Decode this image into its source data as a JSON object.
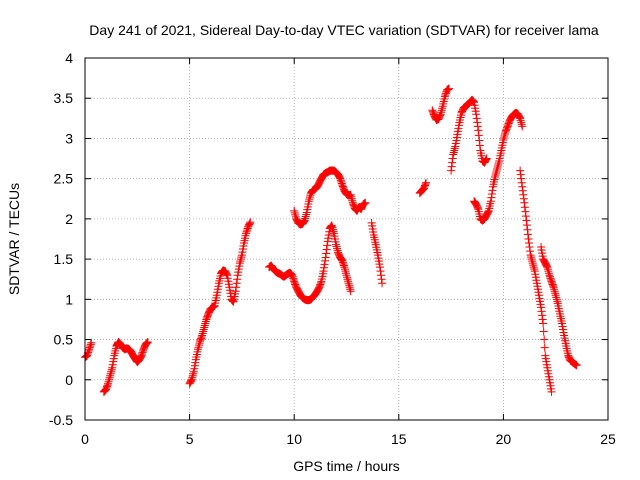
{
  "chart_data": {
    "type": "scatter",
    "title": "Day 241 of 2021, Sidereal Day-to-day VTEC variation (SDTVAR) for receiver lama",
    "xlabel": "GPS time / hours",
    "ylabel": "SDTVAR / TECUs",
    "xlim": [
      0,
      25
    ],
    "ylim": [
      -0.5,
      4
    ],
    "xticks": [
      0,
      5,
      10,
      15,
      20,
      25
    ],
    "yticks": [
      -0.5,
      0,
      0.5,
      1,
      1.5,
      2,
      2.5,
      3,
      3.5,
      4
    ],
    "xtick_labels": [
      "0",
      "5",
      "10",
      "15",
      "20",
      "25"
    ],
    "ytick_labels": [
      "-0.5",
      "0",
      "0.5",
      "1",
      "1.5",
      "2",
      "2.5",
      "3",
      "3.5",
      "4"
    ],
    "grid": true,
    "marker": "plus",
    "series": [
      {
        "name": "SDTVAR",
        "color": "#ff0000",
        "segments": [
          [
            [
              0.0,
              0.28
            ],
            [
              0.1,
              0.3
            ],
            [
              0.2,
              0.38
            ],
            [
              0.3,
              0.46
            ]
          ],
          [
            [
              0.9,
              -0.15
            ],
            [
              1.0,
              -0.12
            ],
            [
              1.1,
              -0.05
            ],
            [
              1.2,
              0.05
            ],
            [
              1.3,
              0.15
            ],
            [
              1.4,
              0.3
            ],
            [
              1.5,
              0.42
            ],
            [
              1.6,
              0.47
            ],
            [
              1.7,
              0.44
            ],
            [
              1.8,
              0.4
            ],
            [
              1.9,
              0.38
            ],
            [
              2.0,
              0.39
            ],
            [
              2.1,
              0.38
            ],
            [
              2.2,
              0.35
            ],
            [
              2.3,
              0.3
            ],
            [
              2.4,
              0.26
            ],
            [
              2.5,
              0.22
            ],
            [
              2.6,
              0.25
            ],
            [
              2.7,
              0.3
            ],
            [
              2.8,
              0.38
            ],
            [
              2.9,
              0.44
            ],
            [
              3.0,
              0.47
            ]
          ],
          [
            [
              5.0,
              -0.05
            ],
            [
              5.1,
              0.0
            ],
            [
              5.2,
              0.1
            ],
            [
              5.3,
              0.25
            ],
            [
              5.4,
              0.38
            ],
            [
              5.5,
              0.48
            ],
            [
              5.6,
              0.55
            ],
            [
              5.7,
              0.65
            ],
            [
              5.8,
              0.75
            ],
            [
              5.9,
              0.82
            ],
            [
              6.0,
              0.88
            ],
            [
              6.1,
              0.9
            ],
            [
              6.2,
              0.92
            ],
            [
              6.3,
              1.05
            ],
            [
              6.4,
              1.2
            ],
            [
              6.5,
              1.32
            ],
            [
              6.6,
              1.36
            ],
            [
              6.7,
              1.35
            ],
            [
              6.8,
              1.3
            ],
            [
              6.9,
              1.15
            ],
            [
              7.0,
              1.0
            ],
            [
              7.1,
              0.97
            ],
            [
              7.2,
              1.1
            ],
            [
              7.3,
              1.3
            ],
            [
              7.4,
              1.45
            ],
            [
              7.5,
              1.55
            ],
            [
              7.6,
              1.7
            ],
            [
              7.7,
              1.82
            ],
            [
              7.8,
              1.9
            ],
            [
              7.9,
              1.96
            ]
          ],
          [
            [
              8.8,
              1.4
            ],
            [
              8.9,
              1.42
            ],
            [
              9.0,
              1.38
            ],
            [
              9.1,
              1.35
            ],
            [
              9.2,
              1.33
            ],
            [
              9.3,
              1.32
            ],
            [
              9.4,
              1.3
            ],
            [
              9.5,
              1.28
            ],
            [
              9.6,
              1.3
            ],
            [
              9.7,
              1.32
            ],
            [
              9.8,
              1.33
            ],
            [
              9.9,
              1.3
            ],
            [
              10.0,
              1.22
            ],
            [
              10.1,
              1.15
            ],
            [
              10.2,
              1.1
            ],
            [
              10.3,
              1.05
            ],
            [
              10.4,
              1.02
            ],
            [
              10.5,
              1.0
            ],
            [
              10.6,
              0.99
            ],
            [
              10.7,
              0.99
            ],
            [
              10.8,
              1.0
            ],
            [
              10.9,
              1.03
            ],
            [
              11.0,
              1.06
            ],
            [
              11.1,
              1.1
            ],
            [
              11.2,
              1.15
            ],
            [
              11.3,
              1.22
            ],
            [
              11.4,
              1.35
            ],
            [
              11.5,
              1.52
            ],
            [
              11.6,
              1.72
            ],
            [
              11.7,
              1.88
            ],
            [
              11.8,
              1.92
            ],
            [
              11.9,
              1.82
            ],
            [
              12.0,
              1.68
            ],
            [
              12.1,
              1.58
            ],
            [
              12.2,
              1.52
            ],
            [
              12.3,
              1.48
            ],
            [
              12.4,
              1.4
            ],
            [
              12.5,
              1.3
            ],
            [
              12.6,
              1.2
            ],
            [
              12.7,
              1.1
            ]
          ],
          [
            [
              10.0,
              2.1
            ],
            [
              10.1,
              2.0
            ],
            [
              10.2,
              1.95
            ],
            [
              10.3,
              1.93
            ],
            [
              10.4,
              1.94
            ],
            [
              10.5,
              1.98
            ],
            [
              10.6,
              2.08
            ],
            [
              10.7,
              2.22
            ],
            [
              10.8,
              2.32
            ],
            [
              10.9,
              2.36
            ],
            [
              11.0,
              2.37
            ],
            [
              11.1,
              2.4
            ],
            [
              11.2,
              2.45
            ],
            [
              11.3,
              2.5
            ],
            [
              11.4,
              2.55
            ],
            [
              11.5,
              2.57
            ],
            [
              11.6,
              2.58
            ],
            [
              11.7,
              2.6
            ],
            [
              11.8,
              2.6
            ],
            [
              11.9,
              2.6
            ],
            [
              12.0,
              2.58
            ],
            [
              12.1,
              2.55
            ],
            [
              12.2,
              2.5
            ],
            [
              12.3,
              2.42
            ],
            [
              12.4,
              2.35
            ],
            [
              12.5,
              2.31
            ],
            [
              12.6,
              2.29
            ],
            [
              12.7,
              2.3
            ],
            [
              12.8,
              2.2
            ],
            [
              12.9,
              2.13
            ],
            [
              13.0,
              2.1
            ],
            [
              13.1,
              2.15
            ],
            [
              13.2,
              2.12
            ],
            [
              13.3,
              2.18
            ],
            [
              13.4,
              2.2
            ]
          ],
          [
            [
              13.7,
              1.95
            ],
            [
              13.8,
              1.8
            ],
            [
              13.9,
              1.68
            ],
            [
              14.0,
              1.55
            ],
            [
              14.1,
              1.4
            ],
            [
              14.2,
              1.2
            ]
          ],
          [
            [
              16.0,
              2.32
            ],
            [
              16.1,
              2.35
            ],
            [
              16.2,
              2.38
            ],
            [
              16.3,
              2.45
            ]
          ],
          [
            [
              16.6,
              3.35
            ],
            [
              16.7,
              3.28
            ],
            [
              16.8,
              3.23
            ],
            [
              16.9,
              3.24
            ],
            [
              17.0,
              3.3
            ],
            [
              17.1,
              3.4
            ],
            [
              17.2,
              3.52
            ],
            [
              17.3,
              3.6
            ],
            [
              17.4,
              3.62
            ]
          ],
          [
            [
              17.5,
              2.6
            ],
            [
              17.6,
              2.8
            ],
            [
              17.7,
              2.9
            ],
            [
              17.8,
              3.05
            ],
            [
              17.9,
              3.2
            ],
            [
              18.0,
              3.32
            ],
            [
              18.1,
              3.38
            ],
            [
              18.2,
              3.4
            ],
            [
              18.3,
              3.42
            ],
            [
              18.4,
              3.45
            ],
            [
              18.5,
              3.48
            ],
            [
              18.6,
              3.45
            ],
            [
              18.7,
              3.3
            ],
            [
              18.8,
              3.1
            ],
            [
              18.9,
              2.85
            ],
            [
              19.0,
              2.72
            ],
            [
              19.1,
              2.7
            ],
            [
              19.2,
              2.75
            ]
          ],
          [
            [
              18.6,
              2.22
            ],
            [
              18.7,
              2.18
            ],
            [
              18.8,
              2.12
            ],
            [
              18.9,
              2.0
            ],
            [
              19.0,
              1.98
            ],
            [
              19.1,
              2.0
            ],
            [
              19.2,
              2.05
            ],
            [
              19.3,
              2.1
            ],
            [
              19.4,
              2.22
            ],
            [
              19.5,
              2.4
            ],
            [
              19.6,
              2.52
            ],
            [
              19.7,
              2.62
            ],
            [
              19.8,
              2.72
            ],
            [
              19.9,
              2.85
            ],
            [
              20.0,
              2.98
            ],
            [
              20.1,
              3.08
            ],
            [
              20.2,
              3.15
            ],
            [
              20.3,
              3.22
            ],
            [
              20.4,
              3.27
            ],
            [
              20.5,
              3.3
            ],
            [
              20.6,
              3.32
            ],
            [
              20.7,
              3.3
            ],
            [
              20.8,
              3.25
            ],
            [
              20.9,
              3.15
            ]
          ],
          [
            [
              20.8,
              2.6
            ],
            [
              20.9,
              2.4
            ],
            [
              21.0,
              2.2
            ],
            [
              21.1,
              1.98
            ],
            [
              21.2,
              1.75
            ],
            [
              21.3,
              1.55
            ],
            [
              21.4,
              1.45
            ],
            [
              21.5,
              1.35
            ],
            [
              21.6,
              1.2
            ],
            [
              21.7,
              1.05
            ],
            [
              21.8,
              0.9
            ],
            [
              21.9,
              0.7
            ],
            [
              22.0,
              0.3
            ],
            [
              22.1,
              0.15
            ],
            [
              22.2,
              0.0
            ],
            [
              22.3,
              -0.15
            ]
          ],
          [
            [
              21.8,
              1.65
            ],
            [
              21.9,
              1.5
            ],
            [
              22.0,
              1.45
            ],
            [
              22.1,
              1.4
            ],
            [
              22.2,
              1.3
            ],
            [
              22.3,
              1.22
            ],
            [
              22.4,
              1.15
            ],
            [
              22.5,
              1.05
            ],
            [
              22.6,
              0.95
            ],
            [
              22.7,
              0.82
            ],
            [
              22.8,
              0.7
            ],
            [
              22.9,
              0.55
            ],
            [
              23.0,
              0.42
            ],
            [
              23.1,
              0.3
            ],
            [
              23.2,
              0.24
            ],
            [
              23.3,
              0.22
            ],
            [
              23.4,
              0.2
            ],
            [
              23.5,
              0.18
            ]
          ]
        ]
      }
    ]
  }
}
